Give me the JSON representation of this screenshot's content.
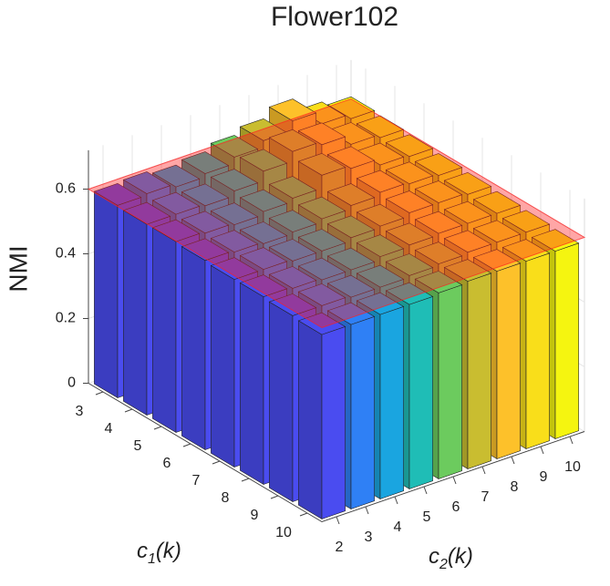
{
  "chart_data": {
    "type": "bar3",
    "title": "Flower102",
    "zlabel": "NMI",
    "xlabel_parts": [
      "c",
      "1",
      "(k)"
    ],
    "ylabel_parts": [
      "c",
      "2",
      "(k)"
    ],
    "c1_categories": [
      "3",
      "4",
      "5",
      "6",
      "7",
      "8",
      "9",
      "10"
    ],
    "c2_categories": [
      "2",
      "3",
      "4",
      "5",
      "6",
      "7",
      "8",
      "9",
      "10"
    ],
    "values": [
      [
        0.595,
        0.6,
        0.59,
        0.6,
        0.62,
        0.64,
        0.67,
        0.63,
        0.615
      ],
      [
        0.59,
        0.59,
        0.585,
        0.6,
        0.63,
        0.66,
        0.65,
        0.62,
        0.61
      ],
      [
        0.59,
        0.585,
        0.58,
        0.59,
        0.6,
        0.64,
        0.63,
        0.61,
        0.605
      ],
      [
        0.585,
        0.58,
        0.575,
        0.58,
        0.59,
        0.6,
        0.61,
        0.605,
        0.6
      ],
      [
        0.58,
        0.58,
        0.575,
        0.575,
        0.585,
        0.59,
        0.6,
        0.6,
        0.595
      ],
      [
        0.58,
        0.575,
        0.57,
        0.57,
        0.58,
        0.585,
        0.59,
        0.59,
        0.59
      ],
      [
        0.575,
        0.575,
        0.57,
        0.57,
        0.575,
        0.58,
        0.585,
        0.585,
        0.585
      ],
      [
        0.57,
        0.57,
        0.57,
        0.57,
        0.575,
        0.58,
        0.58,
        0.58,
        0.58
      ]
    ],
    "colors": [
      "#4a4cf0",
      "#2f80f5",
      "#1aa5e0",
      "#1fbdb6",
      "#6ccb5e",
      "#c9bd30",
      "#fdc12a",
      "#f9de1a",
      "#f5f510"
    ],
    "plane_z": 0.6,
    "plane_color": "#ff2020",
    "zlim": [
      0,
      0.72
    ],
    "zticks": [
      0,
      0.2,
      0.4,
      0.6
    ],
    "grid": true
  }
}
